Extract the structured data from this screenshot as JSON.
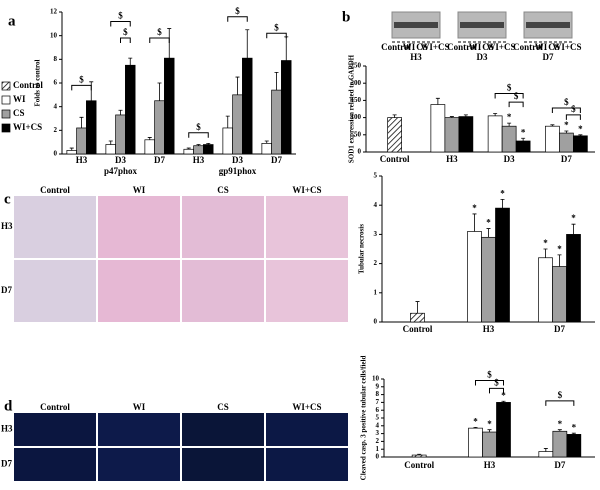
{
  "chart_data": [
    {
      "type": "bar",
      "panel_label": "a",
      "ylabel": "Folds to control",
      "categories": [
        "H3",
        "D3",
        "D7",
        "H3",
        "D3",
        "D7"
      ],
      "groups": [
        "p47phox",
        "gp91phox"
      ],
      "ylim": [
        0,
        12
      ],
      "yticks": [
        0,
        2,
        4,
        6,
        8,
        10,
        12
      ],
      "legend": "left",
      "series": [
        {
          "name": "Control",
          "color": "#ffffff",
          "hatch": true,
          "values": [
            null,
            null,
            null,
            null,
            null,
            null
          ],
          "errors": [
            null,
            null,
            null,
            null,
            null,
            null
          ]
        },
        {
          "name": "WI",
          "color": "#ffffff",
          "values": [
            0.3,
            0.8,
            1.2,
            0.4,
            2.2,
            0.9
          ],
          "errors": [
            0.2,
            0.3,
            0.2,
            0.1,
            1.0,
            0.2
          ]
        },
        {
          "name": "CS",
          "color": "#a0a0a0",
          "values": [
            2.2,
            3.3,
            4.5,
            0.7,
            5.0,
            5.4
          ],
          "errors": [
            0.9,
            0.4,
            1.5,
            0.1,
            1.5,
            1.5
          ]
        },
        {
          "name": "WI+CS",
          "color": "#000000",
          "values": [
            4.5,
            7.5,
            8.1,
            0.8,
            8.1,
            7.9
          ],
          "errors": [
            1.6,
            0.6,
            2.5,
            0.1,
            2.4,
            2.0
          ]
        }
      ],
      "annotations": [
        "$",
        "$",
        "$",
        "$",
        "$",
        "$",
        "$"
      ]
    },
    {
      "type": "bar",
      "panel_label": "b",
      "ylabel": "SOD1 expression related to GAPDH",
      "categories": [
        "Control",
        "H3",
        "D3",
        "D7"
      ],
      "ylim": [
        0,
        250
      ],
      "yticks": [
        0,
        50,
        100,
        150,
        200,
        250
      ],
      "series": [
        {
          "color": "#ffffff",
          "hatch": true,
          "values": [
            100,
            null,
            null,
            null
          ],
          "errors": [
            8,
            null,
            null,
            null
          ]
        },
        {
          "color": "#ffffff",
          "values": [
            null,
            138,
            105,
            75
          ],
          "errors": [
            null,
            18,
            7,
            4
          ]
        },
        {
          "color": "#a0a0a0",
          "values": [
            null,
            100,
            75,
            55
          ],
          "errors": [
            null,
            3,
            9,
            6
          ]
        },
        {
          "color": "#000000",
          "values": [
            null,
            103,
            32,
            47
          ],
          "errors": [
            null,
            5,
            8,
            3
          ]
        }
      ],
      "annotations": [
        "*",
        "*",
        "*",
        "*",
        "$",
        "$",
        "$",
        "$"
      ]
    },
    {
      "type": "bar",
      "panel_label": "c",
      "ylabel": "Tubular necrosis",
      "categories": [
        "Control",
        "H3",
        "D7"
      ],
      "ylim": [
        0,
        5
      ],
      "yticks": [
        0,
        1,
        2,
        3,
        4,
        5
      ],
      "series": [
        {
          "color": "#ffffff",
          "hatch": true,
          "values": [
            0.3,
            null,
            null
          ],
          "errors": [
            0.4,
            null,
            null
          ]
        },
        {
          "color": "#ffffff",
          "values": [
            null,
            3.1,
            2.2
          ],
          "errors": [
            null,
            0.6,
            0.3
          ]
        },
        {
          "color": "#a0a0a0",
          "values": [
            null,
            2.9,
            1.9
          ],
          "errors": [
            null,
            0.3,
            0.4
          ]
        },
        {
          "color": "#000000",
          "values": [
            null,
            3.9,
            3.0
          ],
          "errors": [
            null,
            0.3,
            0.35
          ]
        }
      ],
      "annotations": [
        "*",
        "*",
        "*",
        "*",
        "*",
        "*"
      ]
    },
    {
      "type": "bar",
      "panel_label": "d",
      "ylabel": "Cleaved casp. 3 positive tubular cells/field",
      "categories": [
        "Control",
        "H3",
        "D7"
      ],
      "ylim": [
        0,
        10
      ],
      "yticks": [
        0,
        1,
        2,
        3,
        4,
        5,
        6,
        7,
        8,
        9,
        10
      ],
      "series": [
        {
          "color": "#ffffff",
          "hatch": true,
          "values": [
            0.25,
            null,
            null
          ],
          "errors": [
            0.1,
            null,
            null
          ]
        },
        {
          "color": "#ffffff",
          "values": [
            null,
            3.7,
            0.7
          ],
          "errors": [
            null,
            0.1,
            0.4
          ]
        },
        {
          "color": "#a0a0a0",
          "values": [
            null,
            3.2,
            3.3
          ],
          "errors": [
            null,
            0.3,
            0.2
          ]
        },
        {
          "color": "#000000",
          "values": [
            null,
            7.0,
            2.9
          ],
          "errors": [
            null,
            0.15,
            0.15
          ]
        }
      ],
      "annotations": [
        "*",
        "*",
        "*",
        "*",
        "*",
        "$",
        "$",
        "$"
      ]
    }
  ],
  "blot": {
    "lanes": [
      "Control",
      "WI",
      "CS",
      "WI+CS"
    ],
    "timepoints": [
      "H3",
      "D3",
      "D7"
    ]
  },
  "micrographs": {
    "columns": [
      "Control",
      "WI",
      "CS",
      "WI+CS"
    ],
    "rows": [
      "H3",
      "D7"
    ]
  }
}
